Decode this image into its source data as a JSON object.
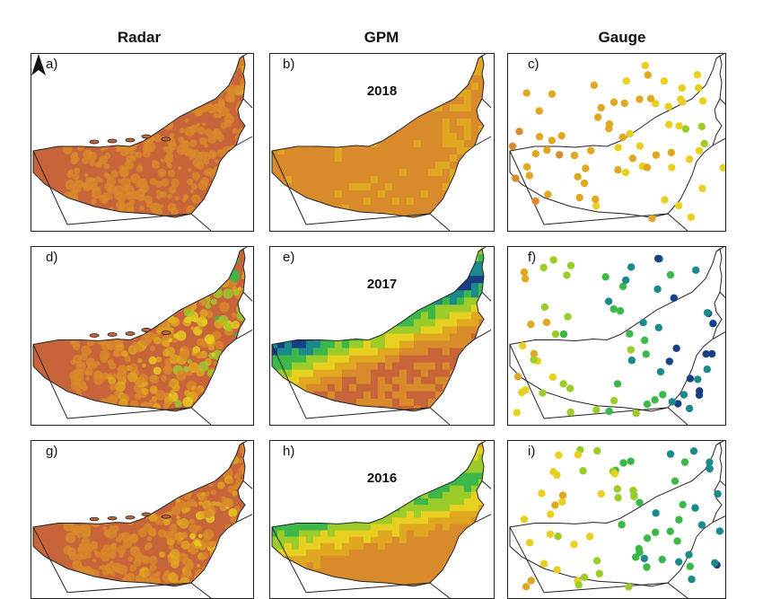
{
  "headers": [
    "Radar",
    "GPM",
    "Gauge"
  ],
  "years": [
    "2018",
    "2017",
    "2016"
  ],
  "panels": [
    {
      "letter": "a)",
      "type": "radar",
      "row": 0,
      "col": 0
    },
    {
      "letter": "b)",
      "type": "gpm",
      "row": 0,
      "col": 1,
      "year": "2018"
    },
    {
      "letter": "c)",
      "type": "gauge",
      "row": 0,
      "col": 2
    },
    {
      "letter": "d)",
      "type": "radar",
      "row": 1,
      "col": 0
    },
    {
      "letter": "e)",
      "type": "gpm",
      "row": 1,
      "col": 1,
      "year": "2017"
    },
    {
      "letter": "f)",
      "type": "gauge",
      "row": 1,
      "col": 2
    },
    {
      "letter": "g)",
      "type": "radar",
      "row": 2,
      "col": 0
    },
    {
      "letter": "h)",
      "type": "gpm",
      "row": 2,
      "col": 1,
      "year": "2016"
    },
    {
      "letter": "i)",
      "type": "gauge",
      "row": 2,
      "col": 2
    }
  ],
  "colors": {
    "dry": "#c8643a",
    "low": "#d98a2a",
    "mid_low": "#e0a820",
    "mid": "#e8d020",
    "mid_high": "#9ccc2a",
    "high": "#3cb84a",
    "very_high": "#1a8a8a",
    "max": "#163f86",
    "border": "#222222"
  },
  "north_arrow_icon": "north-arrow-icon"
}
